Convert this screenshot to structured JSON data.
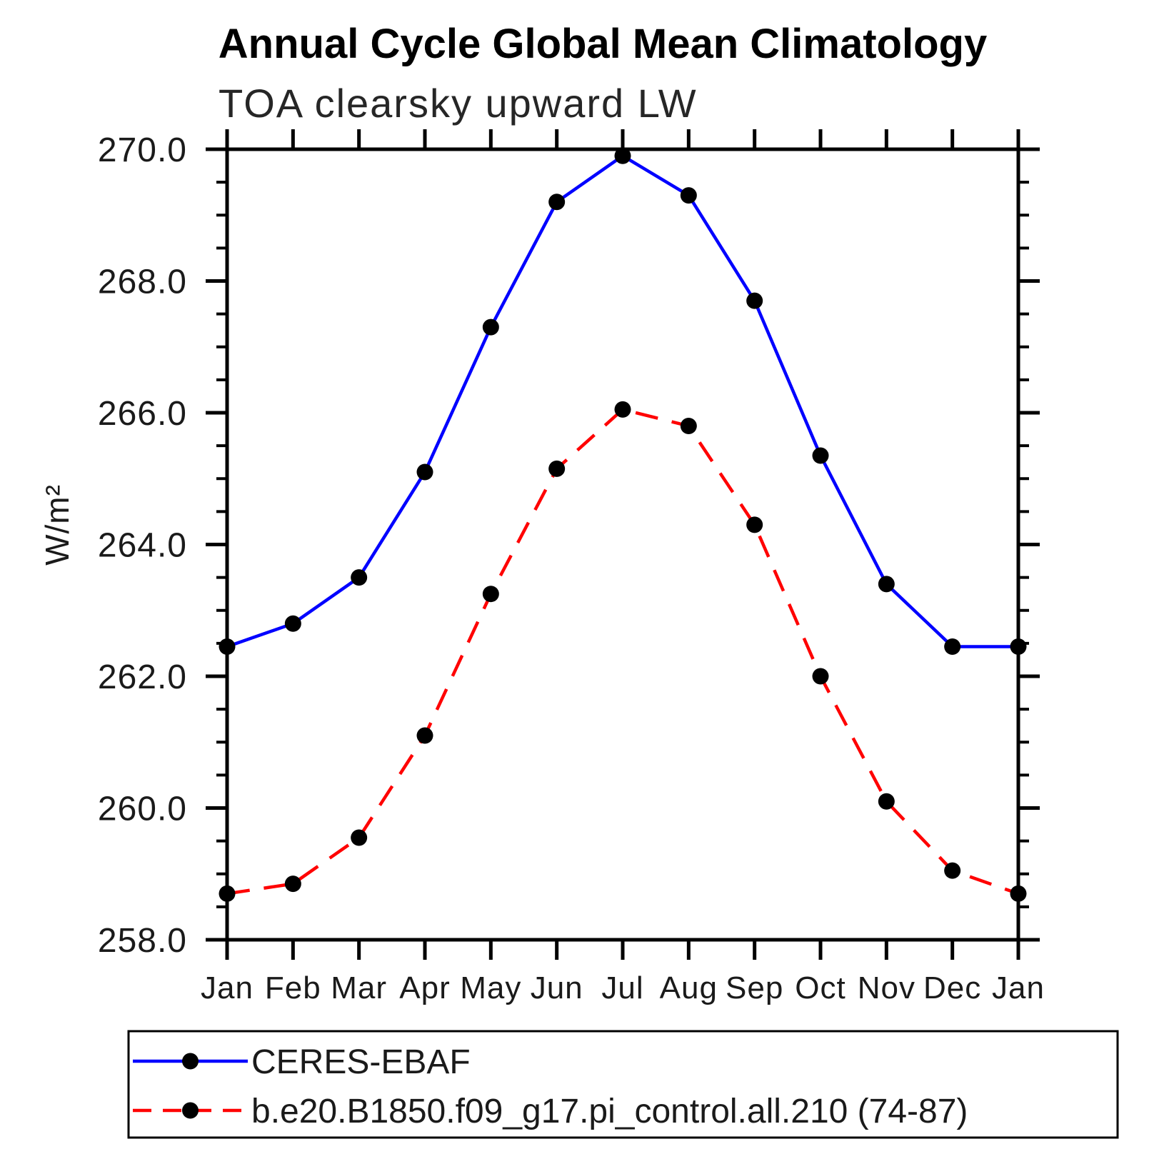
{
  "header": {
    "title": "Annual Cycle Global Mean Climatology",
    "subtitle": "TOA clearsky upward LW"
  },
  "chart_data": {
    "type": "line",
    "title": "Annual Cycle Global Mean Climatology",
    "subtitle": "TOA clearsky upward LW",
    "xlabel": "",
    "ylabel": "W/m²",
    "categories": [
      "Jan",
      "Feb",
      "Mar",
      "Apr",
      "May",
      "Jun",
      "Jul",
      "Aug",
      "Sep",
      "Oct",
      "Nov",
      "Dec",
      "Jan"
    ],
    "ylim": [
      258.0,
      270.0
    ],
    "ytick_labels": [
      "258.0",
      "260.0",
      "262.0",
      "264.0",
      "266.0",
      "268.0",
      "270.0"
    ],
    "ytick_major_step": 2.0,
    "ytick_minor_step": 0.5,
    "grid": false,
    "legend_position": "bottom",
    "background_color": "#ffffff",
    "axis_color": "#000000",
    "text_color": "#1a1a1a",
    "marker_color": "#000000",
    "series": [
      {
        "name": "CERES-EBAF",
        "color": "#0000ff",
        "line_style": "solid",
        "marker": "circle",
        "values": [
          262.45,
          262.8,
          263.5,
          265.1,
          267.3,
          269.2,
          269.9,
          269.3,
          267.7,
          265.35,
          263.4,
          262.45,
          262.45
        ]
      },
      {
        "name": "b.e20.B1850.f09_g17.pi_control.all.210 (74-87)",
        "color": "#ff0000",
        "line_style": "dashed",
        "marker": "circle",
        "values": [
          258.7,
          258.85,
          259.55,
          261.1,
          263.25,
          265.15,
          266.05,
          265.8,
          264.3,
          262.0,
          260.1,
          259.05,
          258.7
        ]
      }
    ]
  }
}
